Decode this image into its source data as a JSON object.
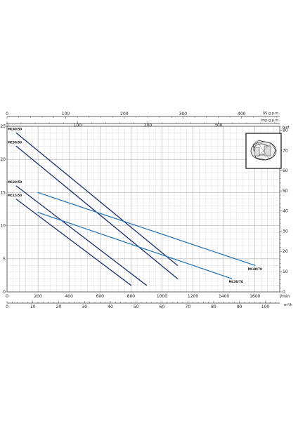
{
  "chart_data": {
    "type": "line",
    "title": "",
    "x_axes": {
      "lmin": {
        "label": "l/min",
        "ticks": [
          0,
          200,
          400,
          600,
          800,
          1000,
          1200,
          1400,
          1600
        ],
        "range": [
          0,
          1760
        ]
      },
      "m3h": {
        "label": "m³/h",
        "ticks": [
          0,
          10,
          20,
          30,
          40,
          50,
          60,
          70,
          80,
          90,
          100
        ],
        "range": [
          0,
          105.6
        ]
      },
      "usgpm": {
        "label": "US g.p.m.",
        "ticks": [
          0,
          100,
          200,
          300,
          400
        ],
        "range": [
          0,
          465
        ]
      },
      "impgpm": {
        "label": "Imp g.p.m.",
        "ticks": [
          0,
          100,
          200,
          300
        ],
        "range": [
          0,
          387
        ]
      }
    },
    "y_axes": {
      "m": {
        "label": "",
        "ticks": [
          0,
          5,
          10,
          15,
          20,
          25
        ],
        "range": [
          0,
          25
        ]
      },
      "feet": {
        "label": "feet",
        "ticks": [
          0,
          10,
          20,
          30,
          40,
          50,
          60,
          70,
          80
        ],
        "range": [
          0,
          82
        ]
      }
    },
    "grid": true,
    "series": [
      {
        "name": "MC40/50",
        "color": "#1b2f6e",
        "x": [
          60,
          1100
        ],
        "y": [
          24,
          4
        ]
      },
      {
        "name": "MC30/50",
        "color": "#1b2f6e",
        "x": [
          60,
          1100
        ],
        "y": [
          22,
          2
        ]
      },
      {
        "name": "MC20/50",
        "color": "#1b2f6e",
        "x": [
          60,
          900
        ],
        "y": [
          16,
          1
        ]
      },
      {
        "name": "MC15/50",
        "color": "#1b2f6e",
        "x": [
          60,
          800
        ],
        "y": [
          14,
          1
        ]
      },
      {
        "name": "MC40/70",
        "color": "#2b78b8",
        "x": [
          200,
          1600
        ],
        "y": [
          15,
          4
        ]
      },
      {
        "name": "MC30/70",
        "color": "#2b78b8",
        "x": [
          200,
          1450
        ],
        "y": [
          12,
          2
        ]
      }
    ],
    "pump_icon": "submersible-pump-icon"
  }
}
